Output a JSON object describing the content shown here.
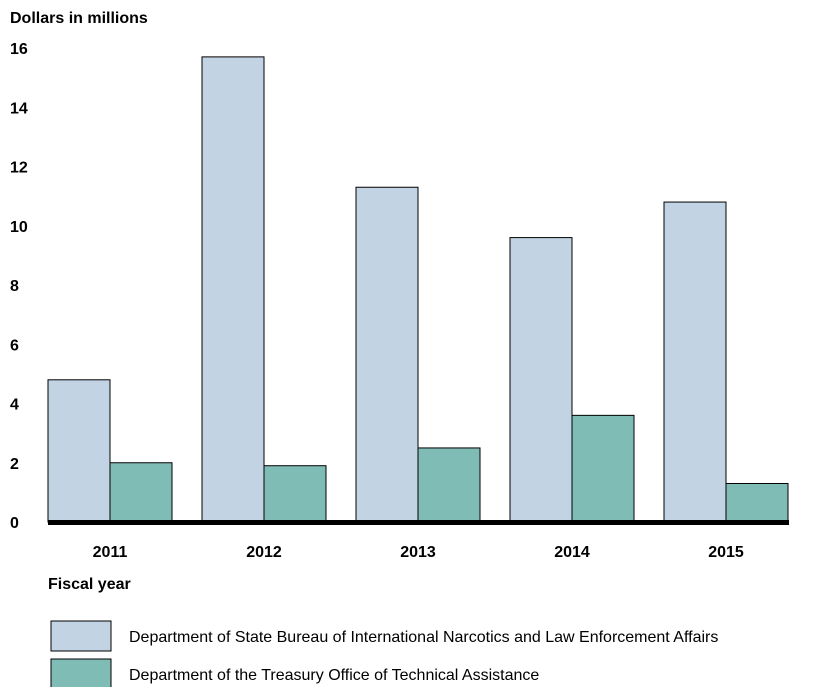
{
  "chart_data": {
    "type": "bar",
    "ylabel": "Dollars in millions",
    "xlabel": "Fiscal year",
    "categories": [
      "2011",
      "2012",
      "2013",
      "2014",
      "2015"
    ],
    "ylim": [
      0,
      16
    ],
    "yticks": [
      "0",
      "2",
      "4",
      "6",
      "8",
      "10",
      "12",
      "14",
      "16"
    ],
    "grid": false,
    "legend_position": "bottom",
    "series": [
      {
        "name": "Department of State Bureau of International Narcotics and Law Enforcement Affairs",
        "color": "#c2d3e3",
        "values": [
          4.8,
          15.7,
          11.3,
          9.6,
          10.8
        ]
      },
      {
        "name": "Department of the Treasury Office of Technical Assistance",
        "color": "#80bcb6",
        "values": [
          2.0,
          1.9,
          2.5,
          3.6,
          1.3
        ]
      }
    ]
  }
}
